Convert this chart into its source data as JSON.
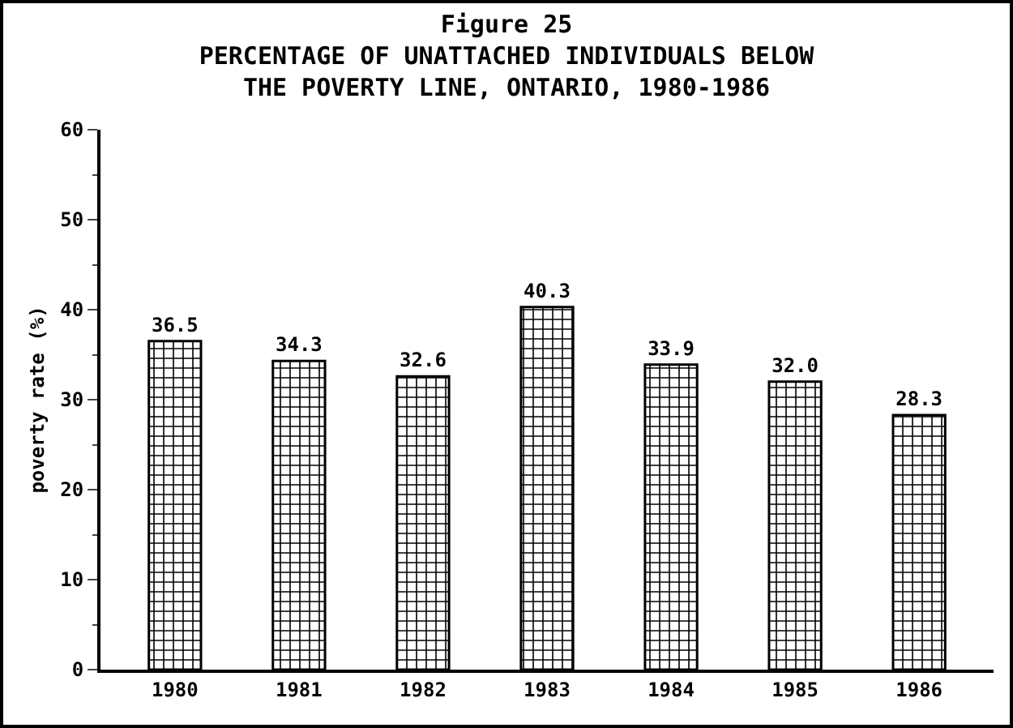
{
  "chart_data": {
    "type": "bar",
    "title": "Figure 25",
    "subtitle": "PERCENTAGE OF UNATTACHED INDIVIDUALS BELOW\nTHE POVERTY LINE, ONTARIO, 1980-1986",
    "ylabel": "poverty rate (%)",
    "categories": [
      "1980",
      "1981",
      "1982",
      "1983",
      "1984",
      "1985",
      "1986"
    ],
    "values": [
      36.5,
      34.3,
      32.6,
      40.3,
      33.9,
      32.0,
      28.3
    ],
    "value_labels": [
      "36.5",
      "34.3",
      "32.6",
      "40.3",
      "33.9",
      "32.0",
      "28.3"
    ],
    "color": "#000000",
    "ylim": [
      0,
      60
    ],
    "yticks": [
      0,
      10,
      20,
      30,
      40,
      50,
      60
    ],
    "grid": false,
    "legend": false
  }
}
